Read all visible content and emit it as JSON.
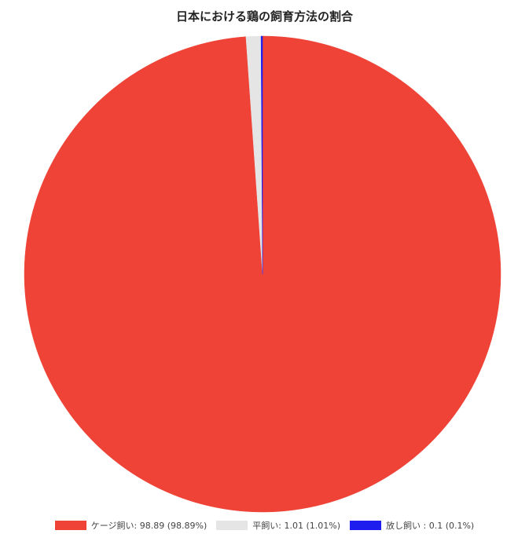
{
  "chart_data": {
    "type": "pie",
    "title": "日本における鶏の飼育方法の割合",
    "start_angle": "top",
    "direction": "clockwise",
    "slices": [
      {
        "label": "ケージ飼い",
        "value": 98.89,
        "percent": "98.89%",
        "color": "#EF4337",
        "legend": "ケージ飼い: 98.89 (98.89%)"
      },
      {
        "label": "平飼い",
        "value": 1.01,
        "percent": "1.01%",
        "color": "#E5E5E5",
        "legend": "平飼い: 1.01 (1.01%)"
      },
      {
        "label": "放し飼い",
        "value": 0.1,
        "percent": "0.1%",
        "color": "#1E1EEF",
        "legend": "放し飼い : 0.1 (0.1%)"
      }
    ],
    "legend_position": "bottom"
  }
}
